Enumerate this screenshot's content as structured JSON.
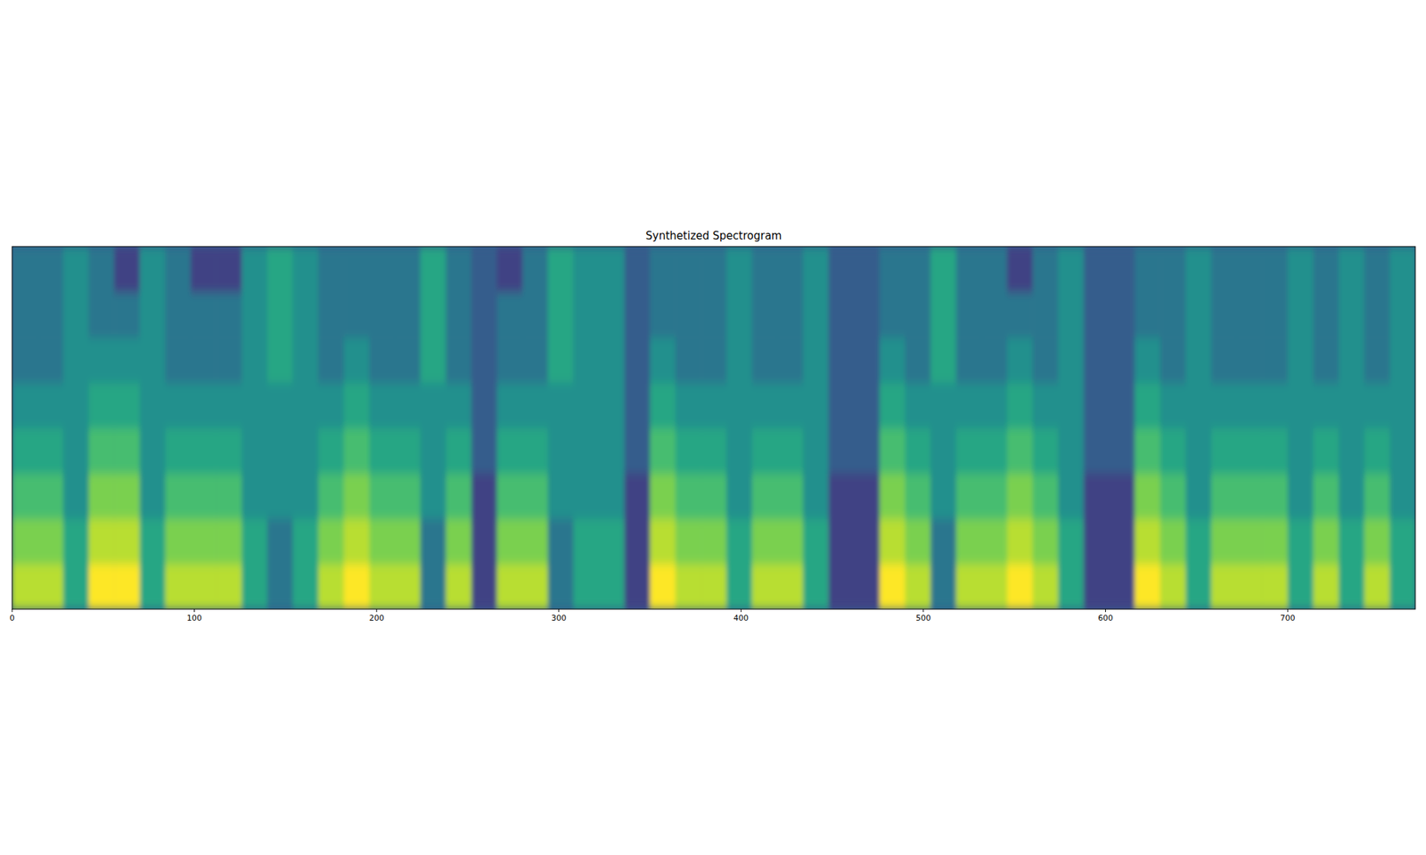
{
  "chart_data": {
    "type": "heatmap",
    "title": "Synthetized Spectrogram",
    "xlim": [
      0,
      770
    ],
    "xticks": [
      0,
      100,
      200,
      300,
      400,
      500,
      600,
      700
    ],
    "ylim": [
      0,
      80
    ],
    "tick_labels": "x",
    "zlim": [
      0,
      10
    ],
    "z": [
      [
        9,
        9,
        6,
        10,
        10,
        6,
        9,
        9,
        9,
        6,
        4,
        6,
        9,
        10,
        9,
        9,
        4,
        9,
        2,
        9,
        9,
        4,
        6,
        6,
        2,
        10,
        9,
        9,
        6,
        9,
        9,
        6,
        2,
        2,
        10,
        9,
        4,
        9,
        9,
        10,
        9,
        6,
        2,
        2,
        10,
        9,
        6,
        9,
        9,
        9,
        6,
        9,
        6,
        9,
        6
      ],
      [
        8,
        8,
        6,
        9,
        9,
        6,
        8,
        8,
        8,
        6,
        4,
        6,
        8,
        9,
        8,
        8,
        4,
        8,
        2,
        8,
        8,
        4,
        6,
        6,
        2,
        9,
        8,
        8,
        6,
        8,
        8,
        6,
        2,
        2,
        9,
        8,
        4,
        8,
        8,
        9,
        8,
        6,
        2,
        2,
        9,
        8,
        6,
        8,
        8,
        8,
        6,
        8,
        6,
        8,
        6
      ],
      [
        7,
        7,
        5,
        8,
        8,
        5,
        7,
        7,
        7,
        5,
        5,
        5,
        7,
        8,
        7,
        7,
        5,
        7,
        2,
        7,
        7,
        5,
        5,
        5,
        2,
        8,
        7,
        7,
        5,
        7,
        7,
        5,
        2,
        2,
        8,
        7,
        5,
        7,
        7,
        8,
        7,
        5,
        2,
        2,
        8,
        7,
        5,
        7,
        7,
        7,
        5,
        7,
        5,
        7,
        5
      ],
      [
        6,
        6,
        5,
        7,
        7,
        5,
        6,
        6,
        6,
        5,
        5,
        5,
        6,
        7,
        6,
        6,
        5,
        6,
        3,
        6,
        6,
        5,
        5,
        5,
        3,
        7,
        6,
        6,
        5,
        6,
        6,
        5,
        3,
        3,
        7,
        6,
        5,
        6,
        6,
        7,
        6,
        5,
        3,
        3,
        7,
        6,
        5,
        6,
        6,
        6,
        5,
        6,
        5,
        6,
        5
      ],
      [
        5,
        5,
        5,
        6,
        6,
        5,
        5,
        5,
        5,
        5,
        5,
        5,
        5,
        6,
        5,
        5,
        5,
        5,
        3,
        5,
        5,
        5,
        5,
        5,
        3,
        6,
        5,
        5,
        5,
        5,
        5,
        5,
        3,
        3,
        6,
        5,
        5,
        5,
        5,
        6,
        5,
        5,
        3,
        3,
        6,
        5,
        5,
        5,
        5,
        5,
        5,
        5,
        5,
        5,
        5
      ],
      [
        4,
        4,
        5,
        5,
        5,
        5,
        4,
        4,
        4,
        5,
        6,
        5,
        4,
        5,
        4,
        4,
        6,
        4,
        3,
        4,
        4,
        6,
        5,
        5,
        3,
        5,
        4,
        4,
        5,
        4,
        4,
        5,
        3,
        3,
        5,
        4,
        6,
        4,
        4,
        5,
        4,
        5,
        3,
        3,
        5,
        4,
        5,
        4,
        4,
        4,
        5,
        4,
        5,
        4,
        5
      ],
      [
        4,
        4,
        5,
        4,
        4,
        5,
        4,
        4,
        4,
        5,
        6,
        5,
        4,
        4,
        4,
        4,
        6,
        4,
        3,
        4,
        4,
        6,
        5,
        5,
        3,
        4,
        4,
        4,
        5,
        4,
        4,
        5,
        3,
        3,
        4,
        4,
        6,
        4,
        4,
        4,
        4,
        5,
        3,
        3,
        4,
        4,
        5,
        4,
        4,
        4,
        5,
        4,
        5,
        4,
        5
      ],
      [
        4,
        4,
        5,
        4,
        2,
        5,
        4,
        2,
        2,
        5,
        6,
        5,
        4,
        4,
        4,
        4,
        6,
        4,
        3,
        2,
        4,
        6,
        5,
        5,
        3,
        4,
        4,
        4,
        5,
        4,
        4,
        5,
        3,
        3,
        4,
        4,
        6,
        4,
        4,
        2,
        4,
        5,
        3,
        3,
        4,
        4,
        5,
        4,
        4,
        4,
        5,
        4,
        5,
        4,
        5
      ]
    ]
  }
}
